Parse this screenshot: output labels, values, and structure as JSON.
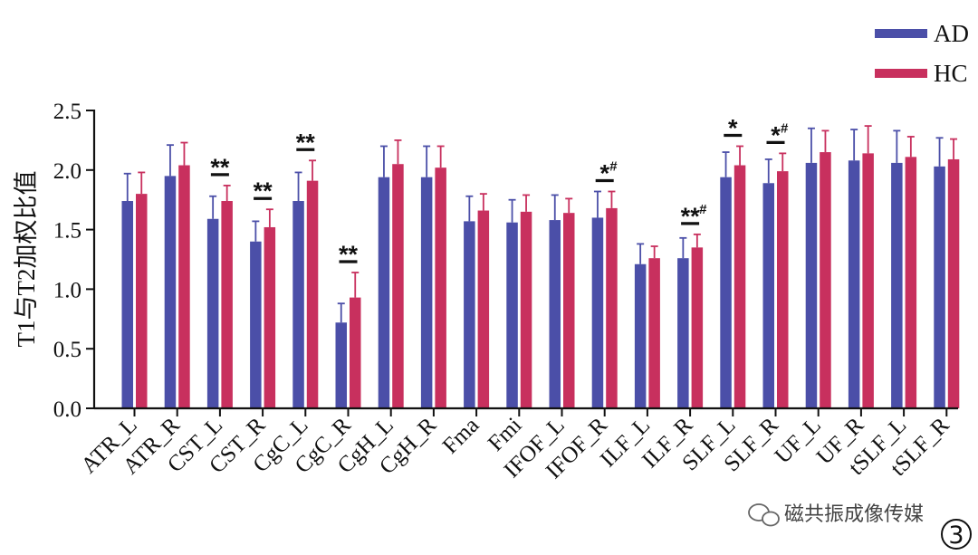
{
  "chart_data": {
    "type": "bar",
    "title": "",
    "xlabel": "",
    "ylabel": "T1与T2加权比值",
    "ylim": [
      0,
      2.5
    ],
    "yticks": [
      "0.0",
      "0.5",
      "1.0",
      "1.5",
      "2.0",
      "2.5"
    ],
    "grid": false,
    "legend_position": "top-right",
    "categories": [
      "ATR_L",
      "ATR_R",
      "CST_L",
      "CST_R",
      "CgC_L",
      "CgC_R",
      "CgH_L",
      "CgH_R",
      "Fma",
      "Fmi",
      "IFOF_L",
      "IFOF_R",
      "ILF_L",
      "ILF_R",
      "SLF_L",
      "SLF_R",
      "UF_L",
      "UF_R",
      "tSLF_L",
      "tSLF_R"
    ],
    "series": [
      {
        "name": "AD",
        "color": "#4b4fa8",
        "values": [
          1.74,
          1.95,
          1.59,
          1.4,
          1.74,
          0.72,
          1.94,
          1.94,
          1.57,
          1.56,
          1.58,
          1.6,
          1.21,
          1.26,
          1.94,
          1.89,
          2.06,
          2.08,
          2.06,
          2.03
        ],
        "errors": [
          0.23,
          0.26,
          0.19,
          0.17,
          0.24,
          0.16,
          0.26,
          0.26,
          0.21,
          0.19,
          0.21,
          0.22,
          0.17,
          0.17,
          0.21,
          0.2,
          0.29,
          0.26,
          0.27,
          0.24
        ]
      },
      {
        "name": "HC",
        "color": "#c8305e",
        "values": [
          1.8,
          2.04,
          1.74,
          1.52,
          1.91,
          0.93,
          2.05,
          2.02,
          1.66,
          1.65,
          1.64,
          1.68,
          1.26,
          1.35,
          2.04,
          1.99,
          2.15,
          2.14,
          2.11,
          2.09
        ],
        "errors": [
          0.18,
          0.19,
          0.13,
          0.15,
          0.17,
          0.21,
          0.2,
          0.18,
          0.14,
          0.14,
          0.12,
          0.14,
          0.1,
          0.11,
          0.16,
          0.15,
          0.18,
          0.23,
          0.17,
          0.17
        ]
      }
    ],
    "annotations": [
      {
        "category": "CST_L",
        "text": "**",
        "hash": ""
      },
      {
        "category": "CST_R",
        "text": "**",
        "hash": ""
      },
      {
        "category": "CgC_L",
        "text": "**",
        "hash": ""
      },
      {
        "category": "CgC_R",
        "text": "**",
        "hash": ""
      },
      {
        "category": "IFOF_R",
        "text": "*",
        "hash": "#"
      },
      {
        "category": "ILF_R",
        "text": "**",
        "hash": "#"
      },
      {
        "category": "SLF_L",
        "text": "*",
        "hash": ""
      },
      {
        "category": "SLF_R",
        "text": "*",
        "hash": "#"
      }
    ]
  },
  "watermark": {
    "icon": "wechat-icon",
    "text": "磁共振成像传媒"
  },
  "panel_label": "3"
}
